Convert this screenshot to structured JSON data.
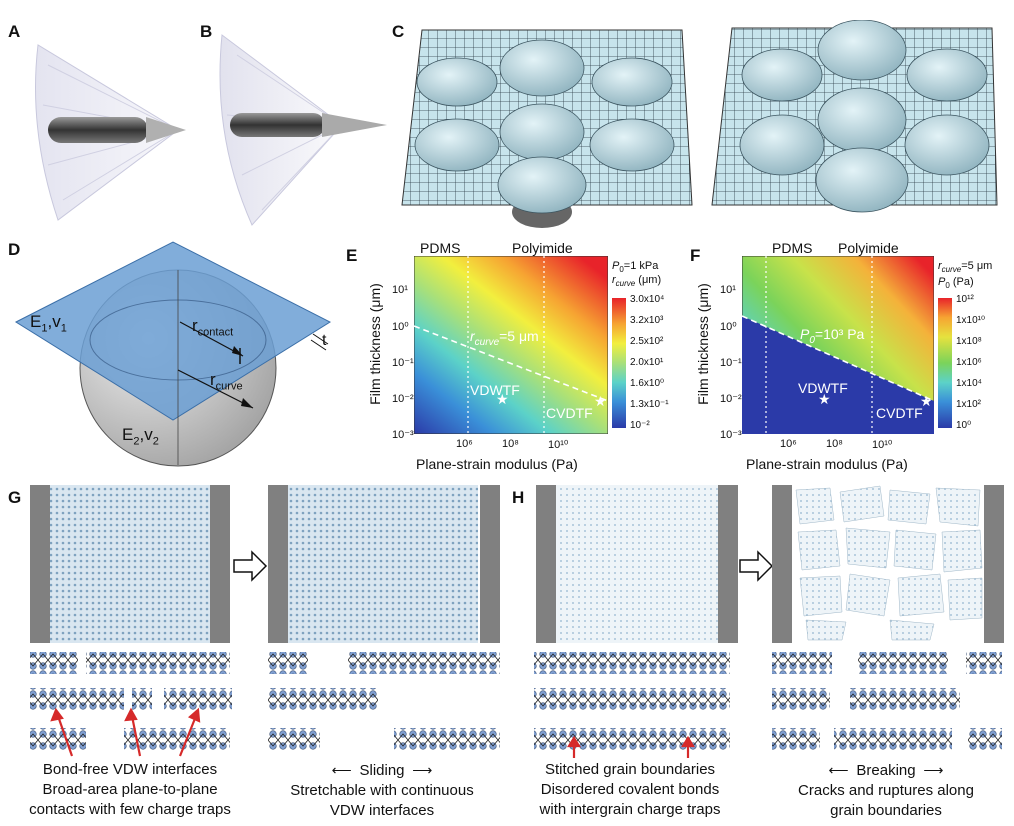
{
  "panels": {
    "A": "A",
    "B": "B",
    "C": "C",
    "D": "D",
    "E": "E",
    "F": "F",
    "G": "G",
    "H": "H"
  },
  "panel_d": {
    "film_label": "E",
    "film_sub": "1",
    "film_nu": ",v",
    "film_nu_sub": "1",
    "sphere_label": "E",
    "sphere_sub": "2",
    "sphere_nu": ",v",
    "sphere_nu_sub": "2",
    "r_contact": "r",
    "r_contact_sub": "contact",
    "r_curve": "r",
    "r_curve_sub": "curve",
    "t_label": "t"
  },
  "panel_e": {
    "pdms": "PDMS",
    "polyimide": "Polyimide",
    "ylabel": "Film thickness (μm)",
    "xlabel": "Plane-strain modulus (Pa)",
    "contour_label": "r",
    "contour_sub": "curve",
    "contour_val": "=5 μm",
    "vdwtf": "VDWTF",
    "cvdtf": "CVDTF",
    "legend_p0": "P",
    "legend_p0_sub": "0",
    "legend_p0_val": "=1 kPa",
    "legend_r": "r",
    "legend_r_sub": "curve",
    "legend_r_unit": " (μm)",
    "cb_ticks": [
      "3.0x10⁴",
      "3.2x10³",
      "2.5x10²",
      "2.0x10¹",
      "1.6x10⁰",
      "1.3x10⁻¹",
      "10⁻²"
    ],
    "y_ticks": [
      "10¹",
      "10⁰",
      "10⁻¹",
      "10⁻²",
      "10⁻³"
    ],
    "x_ticks": [
      "10⁶",
      "10⁸",
      "10¹⁰"
    ]
  },
  "panel_f": {
    "pdms": "PDMS",
    "polyimide": "Polyimide",
    "ylabel": "Film thickness (μm)",
    "xlabel": "Plane-strain modulus (Pa)",
    "contour_label": "P",
    "contour_sub": "0",
    "contour_val": "=10³ Pa",
    "vdwtf": "VDWTF",
    "cvdtf": "CVDTF",
    "legend_r": "r",
    "legend_r_sub": "curve",
    "legend_r_val": "=5 μm",
    "legend_p0": "P",
    "legend_p0_sub": "0",
    "legend_p0_unit": " (Pa)",
    "cb_ticks": [
      "10¹²",
      "1x10¹⁰",
      "1x10⁸",
      "1x10⁶",
      "1x10⁴",
      "1x10²",
      "10⁰"
    ],
    "y_ticks": [
      "10¹",
      "10⁰",
      "10⁻¹",
      "10⁻²",
      "10⁻³"
    ],
    "x_ticks": [
      "10⁶",
      "10⁸",
      "10¹⁰"
    ]
  },
  "panel_g": {
    "cap1_line1": "Bond-free VDW interfaces",
    "cap1_line2": "Broad-area plane-to-plane",
    "cap1_line3": "contacts with few charge traps",
    "cap2_line1": "Sliding",
    "cap2_line2": "Stretchable with continuous",
    "cap2_line3": "VDW interfaces"
  },
  "panel_h": {
    "cap1_line1": "Stitched grain boundaries",
    "cap1_line2": "Disordered covalent bonds",
    "cap1_line3": "with intergrain charge traps",
    "cap2_line1": "Breaking",
    "cap2_line2": "Cracks and ruptures along",
    "cap2_line3": "grain boundaries"
  },
  "colors": {
    "film_blue": "#6b9fd4",
    "lattice": "#a9c8dc",
    "atom": "#7f9fd2",
    "electrode": "#808080",
    "arrow_red": "#d62a2a"
  }
}
